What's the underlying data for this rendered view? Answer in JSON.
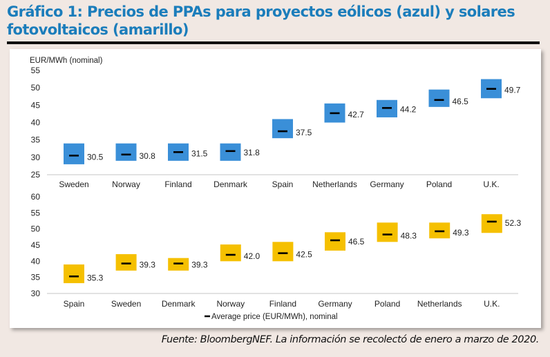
{
  "title": "Gráfico 1: Precios de PPAs para proyectos eólicos (azul) y solares fotovoltaicos (amarillo)",
  "footer": "Fuente: BloombergNEF. La información se recolectó de enero a marzo de 2020.",
  "chart_data": [
    {
      "type": "range-bar",
      "ylabel": "EUR/MWh (nominal)",
      "ylim": [
        25,
        55
      ],
      "yticks": [
        25,
        30,
        35,
        40,
        45,
        50,
        55
      ],
      "color": "#3a8fd8",
      "categories": [
        "Sweden",
        "Norway",
        "Finland",
        "Denmark",
        "Spain",
        "Netherlands",
        "Germany",
        "Poland",
        "U.K."
      ],
      "average": [
        30.5,
        30.8,
        31.5,
        31.8,
        37.5,
        42.7,
        44.2,
        46.5,
        49.7
      ],
      "range_low": [
        28.0,
        29.0,
        29.0,
        29.0,
        35.5,
        40.0,
        41.5,
        44.5,
        47.0
      ],
      "range_high": [
        34.0,
        34.0,
        34.0,
        34.0,
        41.0,
        45.5,
        46.5,
        49.5,
        52.5
      ],
      "labels": [
        "30.5",
        "30.8",
        "31.5",
        "31.8",
        "37.5",
        "42.7",
        "44.2",
        "46.5",
        "49.7"
      ]
    },
    {
      "type": "range-bar",
      "ylim": [
        30,
        60
      ],
      "yticks": [
        30,
        35,
        40,
        45,
        50,
        55,
        60
      ],
      "color": "#f5c000",
      "categories": [
        "Spain",
        "Sweden",
        "Denmark",
        "Norway",
        "Finland",
        "Germany",
        "Poland",
        "Netherlands",
        "U.K."
      ],
      "average": [
        35.3,
        39.3,
        39.3,
        42.0,
        42.5,
        46.5,
        48.3,
        49.3,
        52.3
      ],
      "range_low": [
        33.2,
        37.1,
        37.1,
        40.0,
        40.0,
        43.3,
        46.0,
        47.1,
        48.8
      ],
      "range_high": [
        39.0,
        42.2,
        41.0,
        45.2,
        46.0,
        49.0,
        52.0,
        52.0,
        54.6
      ],
      "labels": [
        "35.3",
        "39.3",
        "39.3",
        "42.0",
        "42.5",
        "46.5",
        "48.3",
        "49.3",
        "52.3"
      ],
      "legend": "Average price (EUR/MWh), nominal",
      "legend_position": "bottom"
    }
  ]
}
